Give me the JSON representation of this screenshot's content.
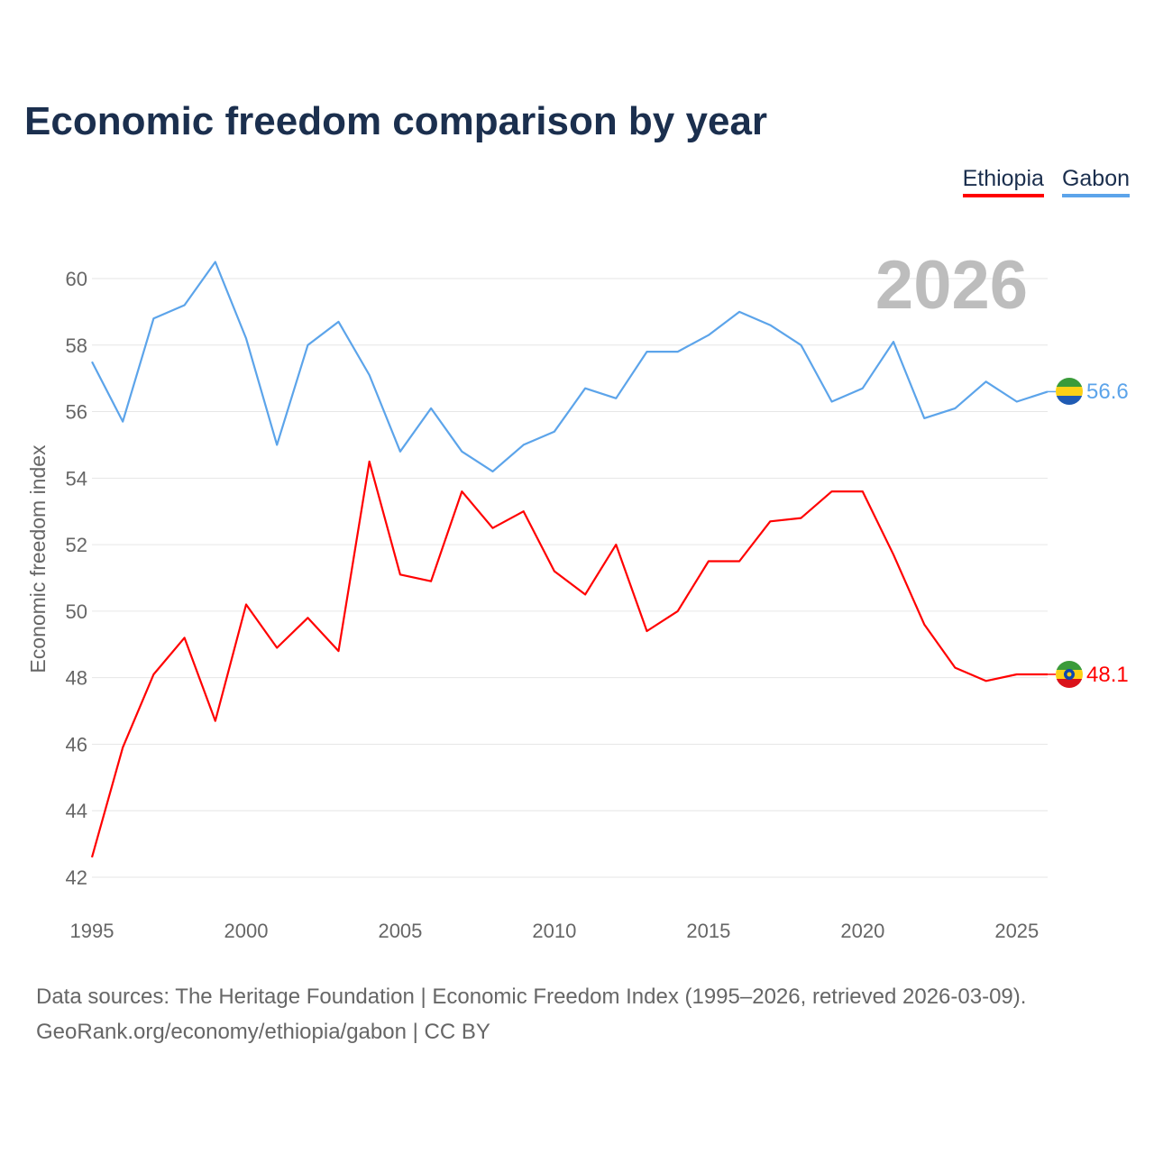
{
  "chart_data": {
    "type": "line",
    "title": "Economic freedom comparison by year",
    "xlabel": "",
    "ylabel": "Economic freedom index",
    "xlim": [
      1995,
      2026
    ],
    "ylim": [
      42,
      61
    ],
    "x_ticks": [
      1995,
      2000,
      2005,
      2010,
      2015,
      2020,
      2025
    ],
    "y_ticks": [
      42,
      44,
      46,
      48,
      50,
      52,
      54,
      56,
      58,
      60
    ],
    "grid": true,
    "legend_position": "top-right",
    "year_watermark": "2026",
    "x": [
      1995,
      1996,
      1997,
      1998,
      1999,
      2000,
      2001,
      2002,
      2003,
      2004,
      2005,
      2006,
      2007,
      2008,
      2009,
      2010,
      2011,
      2012,
      2013,
      2014,
      2015,
      2016,
      2017,
      2018,
      2019,
      2020,
      2021,
      2022,
      2023,
      2024,
      2025,
      2026
    ],
    "series": [
      {
        "name": "Ethiopia",
        "color": "#ff0000",
        "end_label": "48.1",
        "values": [
          42.6,
          45.9,
          48.1,
          49.2,
          46.7,
          50.2,
          48.9,
          49.8,
          48.8,
          54.5,
          51.1,
          50.9,
          53.6,
          52.5,
          53.0,
          51.2,
          50.5,
          52.0,
          49.4,
          50.0,
          51.5,
          51.5,
          52.7,
          52.8,
          53.6,
          53.6,
          51.7,
          49.6,
          48.3,
          47.9,
          48.1,
          48.1
        ]
      },
      {
        "name": "Gabon",
        "color": "#5ca4ea",
        "end_label": "56.6",
        "values": [
          57.5,
          55.7,
          58.8,
          59.2,
          60.5,
          58.2,
          55.0,
          58.0,
          58.7,
          57.1,
          54.8,
          56.1,
          54.8,
          54.2,
          55.0,
          55.4,
          56.7,
          56.4,
          57.8,
          57.8,
          58.3,
          59.0,
          58.6,
          58.0,
          56.3,
          56.7,
          58.1,
          55.8,
          56.1,
          56.9,
          56.3,
          56.6
        ]
      }
    ]
  },
  "footer": {
    "line1": "Data sources: The Heritage Foundation | Economic Freedom Index (1995–2026, retrieved 2026-03-09).",
    "line2": "GeoRank.org/economy/ethiopia/gabon | CC BY"
  }
}
